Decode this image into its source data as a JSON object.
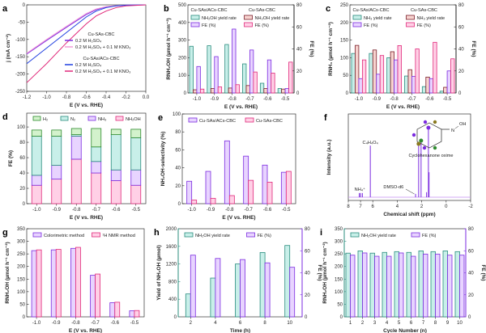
{
  "colors": {
    "teal": "#2a8c7e",
    "teal_light": "#c8efe9",
    "purple": "#7b2be0",
    "purple_light": "#e8d4ff",
    "brown": "#7a1f2a",
    "brown_light": "#f7d3cf",
    "pink": "#e0287a",
    "pink_light": "#ffd0e6",
    "green": "#2e8b2e",
    "green_light": "#d3f2cc",
    "blue": "#1f3fe0"
  },
  "chart_data": [
    {
      "panel": "a",
      "type": "line",
      "xlabel": "E (V vs. RHE)",
      "ylabel": "j (mA cm⁻²)",
      "xlim": [
        -1.2,
        0
      ],
      "ylim": [
        -250,
        0
      ],
      "xticks": [
        "-1.2",
        "-1.0",
        "-0.8",
        "-0.6",
        "-0.4",
        "-0.2",
        "0.0"
      ],
      "yticks": [
        "0",
        "-50",
        "-100",
        "-150",
        "-200",
        "-250"
      ],
      "legend_groups": [
        "Cu-SAs-CBC",
        "Cu-SAs/ACs-CBC"
      ],
      "series": [
        {
          "name": "0.2 M H₂SO₄",
          "group": "Cu-SAs-CBC",
          "color": "#7b2be0",
          "x": [
            -1.2,
            -1.0,
            -0.8,
            -0.6,
            -0.5,
            -0.4,
            -0.3,
            -0.2,
            0
          ],
          "y": [
            -142,
            -103,
            -65,
            -28,
            -14,
            -6,
            -3,
            -1,
            0
          ]
        },
        {
          "name": "0.2 M H₂SO₄ + 0.1 M KNO₃",
          "group": "Cu-SAs-CBC",
          "color": "#f39ad8",
          "x": [
            -1.2,
            -1.0,
            -0.8,
            -0.6,
            -0.5,
            -0.4,
            -0.3,
            -0.2,
            0
          ],
          "y": [
            -140,
            -100,
            -62,
            -25,
            -12,
            -5,
            -2,
            -1,
            0
          ]
        },
        {
          "name": "0.2 M H₂SO₄",
          "group": "Cu-SAs/ACs-CBC",
          "color": "#1f3fe0",
          "x": [
            -1.2,
            -1.0,
            -0.8,
            -0.6,
            -0.5,
            -0.4,
            -0.3,
            -0.2,
            0
          ],
          "y": [
            -170,
            -125,
            -80,
            -35,
            -18,
            -8,
            -3,
            -1,
            0
          ]
        },
        {
          "name": "0.2 M H₂SO₄ + 0.1 M KNO₃",
          "group": "Cu-SAs/ACs-CBC",
          "color": "#e0287a",
          "x": [
            -1.2,
            -1.0,
            -0.8,
            -0.6,
            -0.5,
            -0.4,
            -0.3,
            -0.2,
            0
          ],
          "y": [
            -225,
            -170,
            -110,
            -55,
            -32,
            -18,
            -8,
            -3,
            0
          ]
        }
      ]
    },
    {
      "panel": "b",
      "type": "bar",
      "xlabel": "E (V vs. RHE)",
      "ylabel": "RNH₂OH (µmol h⁻¹ cm⁻²)",
      "y2label": "FE (%)",
      "ylim": [
        0,
        500
      ],
      "y2lim": [
        0,
        80
      ],
      "categories": [
        "-1.0",
        "-0.9",
        "-0.8",
        "-0.7",
        "-0.6",
        "-0.5"
      ],
      "yticks": [
        "0",
        "100",
        "200",
        "300",
        "400",
        "500"
      ],
      "y2ticks": [
        "0",
        "20",
        "40",
        "60",
        "80"
      ],
      "legend_groups": [
        "Cu-SAs/ACs-CBC",
        "Cu-SAs-CBC"
      ],
      "series": [
        {
          "name": "NH₂OH yield rate",
          "group": "Cu-SAs/ACs-CBC",
          "axis": "left",
          "color": "teal",
          "values": [
            265,
            268,
            275,
            165,
            55,
            25
          ]
        },
        {
          "name": "NH₂OH yield rate",
          "group": "Cu-SAs-CBC",
          "axis": "left",
          "color": "brown",
          "values": [
            18,
            25,
            28,
            42,
            25,
            22
          ]
        },
        {
          "name": "FE (%)",
          "group": "Cu-SAs/ACs-CBC",
          "axis": "right",
          "color": "purple",
          "values": [
            24,
            33,
            58,
            39,
            30,
            4
          ]
        },
        {
          "name": "FE (%)",
          "group": "Cu-SAs-CBC",
          "axis": "right",
          "color": "pink",
          "values": [
            3.5,
            5.5,
            7.5,
            19,
            18,
            28
          ]
        }
      ]
    },
    {
      "panel": "c",
      "type": "bar",
      "xlabel": "E (V vs. RHE)",
      "ylabel": "RNH₃ (µmol h⁻¹ cm⁻²)",
      "y2label": "FE (%)",
      "ylim": [
        0,
        250
      ],
      "y2lim": [
        0,
        80
      ],
      "categories": [
        "-1.0",
        "-0.9",
        "-0.8",
        "-0.7",
        "-0.6",
        "-0.5"
      ],
      "yticks": [
        "0",
        "50",
        "100",
        "150",
        "200",
        "250"
      ],
      "y2ticks": [
        "0",
        "20",
        "40",
        "60",
        "80"
      ],
      "legend_groups": [
        "Cu-SAs/ACs-CBC",
        "Cu-SAs-CBC"
      ],
      "series": [
        {
          "name": "NH₃ yield rate",
          "group": "Cu-SAs/ACs-CBC",
          "axis": "left",
          "color": "teal",
          "values": [
            112,
            112,
            100,
            48,
            18,
            5
          ]
        },
        {
          "name": "NH₃ yield rate",
          "group": "Cu-SAs-CBC",
          "axis": "left",
          "color": "brown",
          "values": [
            135,
            122,
            117,
            66,
            45,
            16
          ]
        },
        {
          "name": "FE (%)",
          "group": "Cu-SAs/ACs-CBC",
          "axis": "right",
          "color": "purple",
          "values": [
            13,
            17,
            30,
            15,
            13,
            20
          ]
        },
        {
          "name": "FE (%)",
          "group": "Cu-SAs-CBC",
          "axis": "right",
          "color": "pink",
          "values": [
            30,
            34,
            43,
            40,
            46,
            31
          ]
        }
      ]
    },
    {
      "panel": "d",
      "type": "stacked-bar",
      "xlabel": "E (V vs. RHE)",
      "ylabel": "FE (%)",
      "ylim": [
        0,
        118
      ],
      "categories": [
        "-1.0",
        "-0.9",
        "-0.8",
        "-0.7",
        "-0.6",
        "-0.5"
      ],
      "yticks": [
        "0",
        "20",
        "40",
        "60",
        "80",
        "100"
      ],
      "series": [
        {
          "name": "NH₂OH",
          "color": "pink",
          "values": [
            24,
            32,
            58,
            40,
            30,
            24
          ]
        },
        {
          "name": "NH₃",
          "color": "purple",
          "values": [
            13,
            18,
            30,
            15,
            14,
            20
          ]
        },
        {
          "name": "N₂",
          "color": "teal",
          "values": [
            51,
            38,
            2,
            19,
            46,
            42
          ]
        },
        {
          "name": "H₂",
          "color": "green",
          "values": [
            8,
            8,
            8,
            24,
            7,
            11
          ]
        }
      ],
      "legend_order": [
        "H₂",
        "N₂",
        "NH₃",
        "NH₂OH"
      ]
    },
    {
      "panel": "e",
      "type": "bar",
      "xlabel": "E (V vs. RHE)",
      "ylabel": "NH₂OH-selectivity (%)",
      "ylim": [
        0,
        100
      ],
      "categories": [
        "-1.0",
        "-0.9",
        "-0.8",
        "-0.7",
        "-0.6",
        "-0.5"
      ],
      "yticks": [
        "0",
        "20",
        "40",
        "60",
        "80",
        "100"
      ],
      "series": [
        {
          "name": "Cu-SAs/ACs-CBC",
          "axis": "left",
          "color": "purple",
          "values": [
            25,
            36,
            70,
            53,
            43,
            35
          ]
        },
        {
          "name": "Cu-SAs-CBC",
          "axis": "left",
          "color": "pink",
          "values": [
            4,
            6,
            9,
            26,
            24,
            36
          ]
        }
      ]
    },
    {
      "panel": "f",
      "type": "line",
      "xlabel": "Chemical shift (ppm)",
      "ylabel": "Intensity (a.u.)",
      "xlim": [
        8,
        -2
      ],
      "xticks": [
        "8",
        "7",
        "6",
        "4",
        "2",
        "0",
        "-2"
      ],
      "peaks": [
        {
          "x": 7.1,
          "h": 0.05
        },
        {
          "x": 7.0,
          "h": 0.05
        },
        {
          "x": 6.85,
          "h": 0.05
        },
        {
          "x": 6.2,
          "h": 0.62
        },
        {
          "x": 2.5,
          "h": 0.04
        },
        {
          "x": 2.25,
          "h": 0.62
        },
        {
          "x": 2.05,
          "h": 0.68
        },
        {
          "x": 1.6,
          "h": 0.06
        },
        {
          "x": 1.45,
          "h": 0.85
        },
        {
          "x": 1.4,
          "h": 0.3
        }
      ],
      "annotations": [
        "NH₄⁺",
        "C₄H₄O₄",
        "DMSO-d6",
        "Cyclohexanone oxime",
        "N",
        "OH"
      ]
    },
    {
      "panel": "g",
      "type": "bar",
      "xlabel": "E (V vs. RHE)",
      "ylabel": "RNH₂OH (µmol h⁻¹ cm⁻²)",
      "ylim": [
        0,
        350
      ],
      "categories": [
        "-1.0",
        "-0.9",
        "-0.8",
        "-0.7",
        "-0.6",
        "-0.5"
      ],
      "yticks": [
        "0",
        "50",
        "100",
        "150",
        "200",
        "250",
        "300",
        "350"
      ],
      "series": [
        {
          "name": "Colorimetric method",
          "axis": "left",
          "color": "purple",
          "values": [
            263,
            266,
            272,
            165,
            56,
            24
          ]
        },
        {
          "name": "¹H NMR method",
          "axis": "left",
          "color": "pink",
          "values": [
            266,
            268,
            276,
            170,
            58,
            25
          ]
        }
      ]
    },
    {
      "panel": "h",
      "type": "bar",
      "xlabel": "Time (h)",
      "ylabel": "Yield of NH₂OH (µmol)",
      "y2label": "FE (%)",
      "ylim": [
        0,
        2000
      ],
      "y2lim": [
        0,
        80
      ],
      "categories": [
        "2",
        "4",
        "6",
        "8",
        "10"
      ],
      "yticks": [
        "0",
        "400",
        "800",
        "1200",
        "1600",
        "2000"
      ],
      "y2ticks": [
        "0",
        "20",
        "40",
        "60",
        "80"
      ],
      "series": [
        {
          "name": "NH₂OH yield rate",
          "axis": "left",
          "color": "teal",
          "values": [
            520,
            880,
            1200,
            1460,
            1620
          ]
        },
        {
          "name": "FE (%)",
          "axis": "right",
          "color": "purple",
          "values": [
            56,
            53,
            52,
            49,
            45
          ]
        }
      ]
    },
    {
      "panel": "i",
      "type": "bar",
      "xlabel": "Cycle Number (n)",
      "ylabel": "RNH₂OH (µmol h⁻¹ cm⁻²)",
      "y2label": "FE (%)",
      "ylim": [
        0,
        350
      ],
      "y2lim": [
        0,
        80
      ],
      "categories": [
        "1",
        "2",
        "3",
        "4",
        "5",
        "6",
        "7",
        "8",
        "9",
        "10"
      ],
      "yticks": [
        "0",
        "50",
        "100",
        "150",
        "200",
        "250",
        "300",
        "350"
      ],
      "y2ticks": [
        "0",
        "20",
        "40",
        "60",
        "80"
      ],
      "series": [
        {
          "name": "NH₂OH yield rate",
          "axis": "left",
          "color": "teal",
          "values": [
            253,
            262,
            253,
            256,
            259,
            256,
            262,
            259,
            262,
            259
          ]
        },
        {
          "name": "FE (%)",
          "axis": "right",
          "color": "purple",
          "values": [
            56,
            58,
            55,
            55,
            58,
            55,
            57,
            57,
            56,
            56
          ]
        }
      ]
    }
  ]
}
